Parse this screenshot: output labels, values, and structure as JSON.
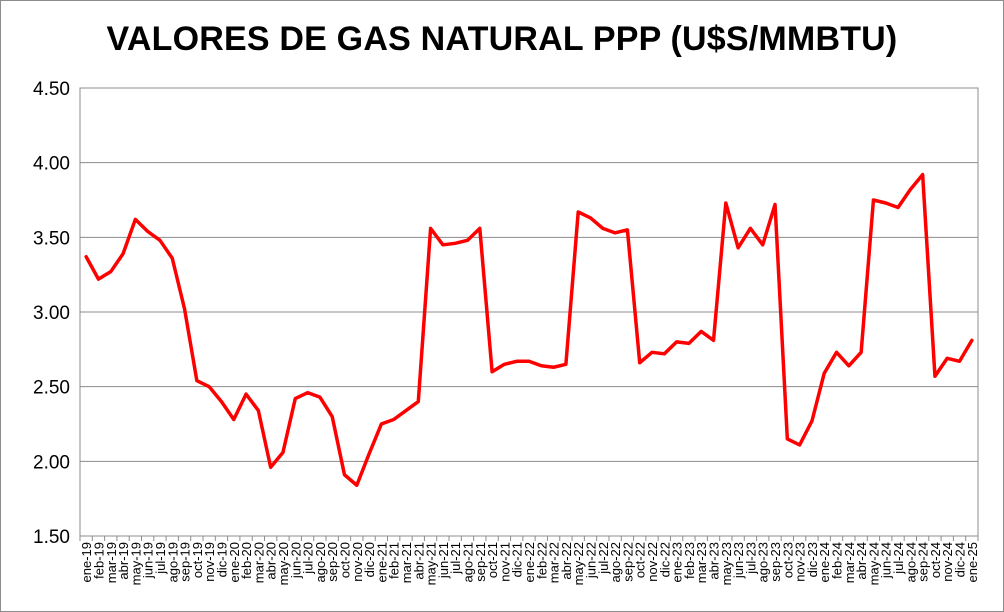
{
  "chart_data": {
    "type": "line",
    "title": "VALORES DE GAS NATURAL PPP (U$S/MMBTU)",
    "xlabel": "",
    "ylabel": "",
    "ylim": [
      1.5,
      4.5
    ],
    "yticks": [
      "1.50",
      "2.00",
      "2.50",
      "3.00",
      "3.50",
      "4.00",
      "4.50"
    ],
    "grid": true,
    "legend": "none",
    "line_color": "#ff0000",
    "categories": [
      "ene-19",
      "feb-19",
      "mar-19",
      "abr-19",
      "may-19",
      "jun-19",
      "jul-19",
      "ago-19",
      "sep-19",
      "oct-19",
      "nov-19",
      "dic-19",
      "ene-20",
      "feb-20",
      "mar-20",
      "abr-20",
      "may-20",
      "jun-20",
      "jul-20",
      "ago-20",
      "sep-20",
      "oct-20",
      "nov-20",
      "dic-20",
      "ene-21",
      "feb-21",
      "mar-21",
      "abr-21",
      "may-21",
      "jun-21",
      "jul-21",
      "ago-21",
      "sep-21",
      "oct-21",
      "nov-21",
      "dic-21",
      "ene-22",
      "feb-22",
      "mar-22",
      "abr-22",
      "may-22",
      "jun-22",
      "jul-22",
      "ago-22",
      "sep-22",
      "oct-22",
      "nov-22",
      "dic-22",
      "ene-23",
      "feb-23",
      "mar-23",
      "abr-23",
      "may-23",
      "jun-23",
      "jul-23",
      "ago-23",
      "sep-23",
      "oct-23",
      "nov-23",
      "dic-23",
      "ene-24",
      "feb-24",
      "mar-24",
      "abr-24",
      "may-24",
      "jun-24",
      "jul-24",
      "ago-24",
      "sep-24",
      "oct-24",
      "nov-24",
      "dic-24",
      "ene-25"
    ],
    "series": [
      {
        "values": [
          3.37,
          3.22,
          3.27,
          3.39,
          3.62,
          3.54,
          3.48,
          3.36,
          3.02,
          2.54,
          2.5,
          2.4,
          2.28,
          2.45,
          2.34,
          1.96,
          2.06,
          2.42,
          2.46,
          2.43,
          2.3,
          1.91,
          1.84,
          2.05,
          2.25,
          2.28,
          2.34,
          2.4,
          3.56,
          3.45,
          3.46,
          3.48,
          3.56,
          2.6,
          2.65,
          2.67,
          2.67,
          2.64,
          2.63,
          2.65,
          3.67,
          3.63,
          3.56,
          3.53,
          3.55,
          2.66,
          2.73,
          2.72,
          2.8,
          2.79,
          2.87,
          2.81,
          3.73,
          3.43,
          3.56,
          3.45,
          3.72,
          2.15,
          2.11,
          2.27,
          2.59,
          2.73,
          2.64,
          2.73,
          3.75,
          3.73,
          3.7,
          3.82,
          3.92,
          2.57,
          2.69,
          2.67,
          2.81
        ]
      }
    ]
  }
}
